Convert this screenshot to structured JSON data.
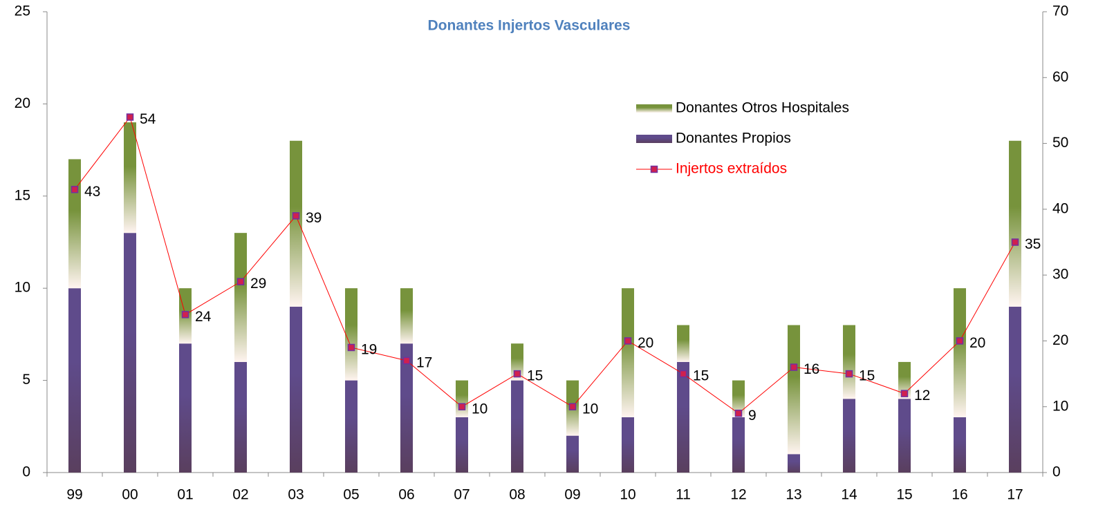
{
  "chart_data": {
    "type": "bar",
    "title": "Donantes Injertos Vasculares",
    "categories": [
      "99",
      "00",
      "01",
      "02",
      "03",
      "05",
      "06",
      "07",
      "08",
      "09",
      "10",
      "11",
      "12",
      "13",
      "14",
      "15",
      "16",
      "17"
    ],
    "series": [
      {
        "name": "Donantes Propios",
        "color": "#5f4b8b",
        "type": "bar",
        "values": [
          10,
          13,
          7,
          6,
          9,
          5,
          7,
          3,
          5,
          2,
          3,
          6,
          3,
          1,
          4,
          4,
          3,
          9
        ]
      },
      {
        "name": "Donantes Otros Hospitales",
        "color": "#77933c",
        "type": "bar",
        "values": [
          7,
          6,
          3,
          7,
          9,
          5,
          3,
          2,
          2,
          3,
          7,
          2,
          2,
          7,
          4,
          2,
          7,
          9
        ]
      },
      {
        "name": "Injertos extraídos",
        "color": "#ff0000",
        "type": "line",
        "axis": "y2",
        "values": [
          43,
          54,
          24,
          29,
          39,
          19,
          17,
          10,
          15,
          10,
          20,
          15,
          9,
          16,
          15,
          12,
          20,
          35
        ]
      }
    ],
    "stacked": true,
    "ylim": [
      0,
      25
    ],
    "yticks": [
      0,
      5,
      10,
      15,
      20,
      25
    ],
    "y2lim": [
      0,
      70
    ],
    "y2ticks": [
      0,
      10,
      20,
      30,
      40,
      50,
      60,
      70
    ],
    "legend": "upper right"
  }
}
